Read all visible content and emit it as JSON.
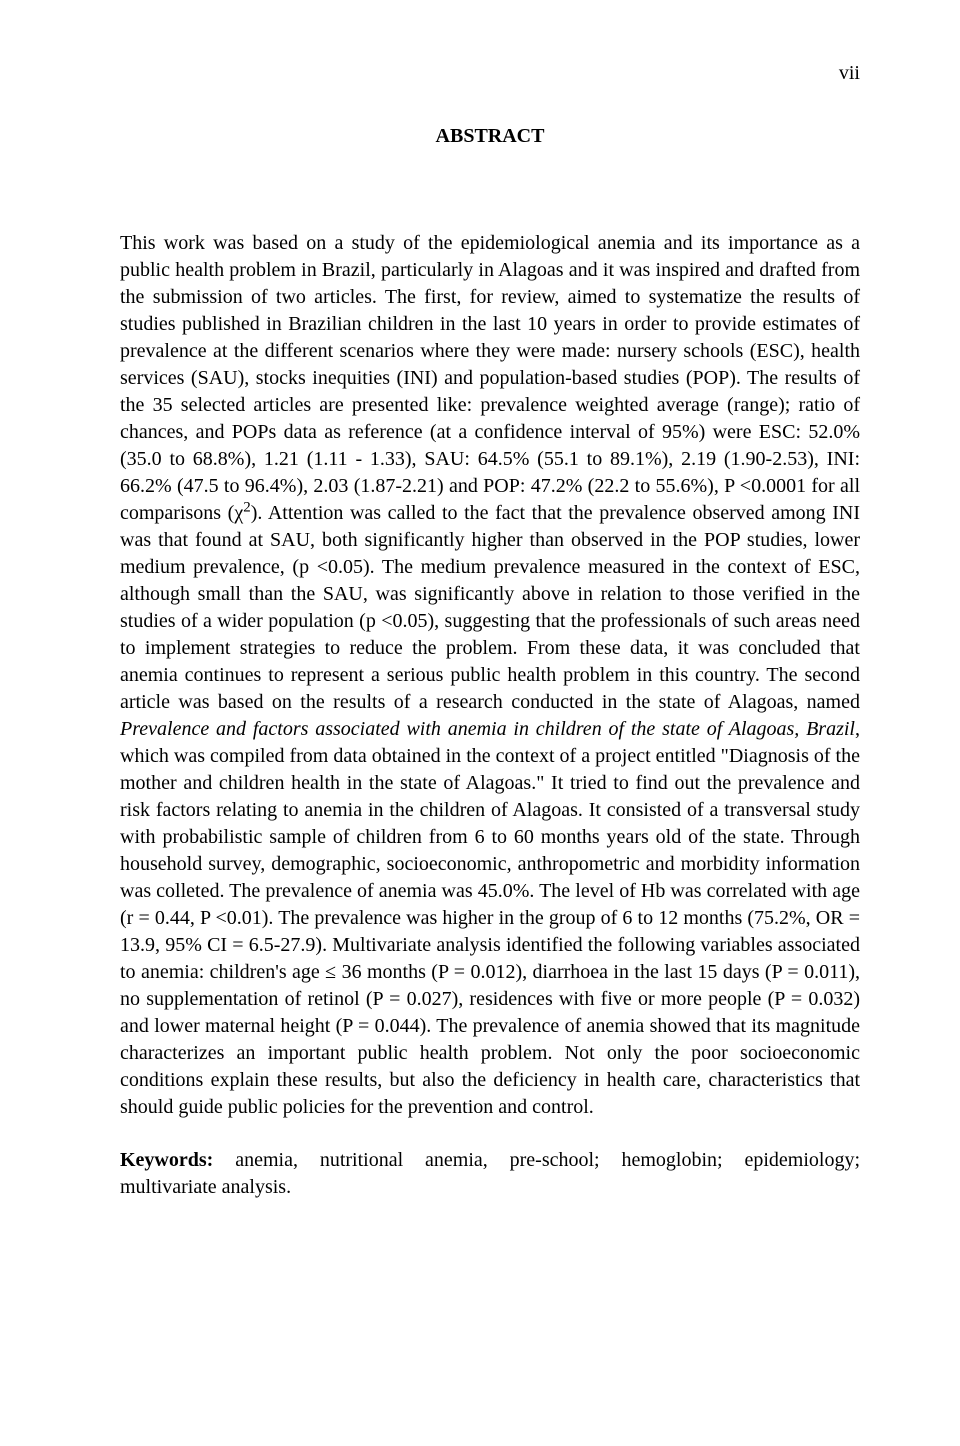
{
  "page": {
    "number_roman": "vii",
    "title": "ABSTRACT",
    "font_family": "Times New Roman",
    "font_size_pt": 12,
    "text_color": "#000000",
    "background_color": "#ffffff"
  },
  "abstract": {
    "p1_a": "This work was based on a study of the epidemiological anemia and its importance as a public health problem in Brazil, particularly in Alagoas and it was inspired and drafted from the submission of two articles. The first, for review, aimed to systematize the results of studies published in Brazilian children in the last 10 years in order to provide estimates of prevalence at the different scenarios where they were made: nursery schools (ESC), health services (SAU), stocks inequities (INI) and population-based studies (POP). The results of the 35 selected articles are presented like: prevalence weighted average (range); ratio of chances, and POPs data as reference (at a confidence interval of 95%) were ESC: 52.0% (35.0 to 68.8%), 1.21 (1.11 - 1.33), SAU: 64.5% (55.1 to 89.1%), 2.19 (1.90-2.53), INI: 66.2% (47.5 to 96.4%), 2.03 (1.87-2.21) and POP: 47.2% (22.2 to 55.6%), P <0.0001 for all comparisons (χ",
    "chi_sup": "2",
    "p1_b": "). Attention was called to the fact that the prevalence observed among INI was that found at SAU, both significantly higher than observed in the POP studies, lower medium prevalence, (p <0.05). The medium prevalence measured in the context of ESC, although small than the SAU, was significantly above in relation to those verified in the studies of a wider population (p <0.05), suggesting that the professionals of such areas need to implement strategies to reduce the problem. From these data, it was concluded that anemia continues to represent a serious public health problem in this country. The second article was based on the results of a research conducted in the state of Alagoas, named ",
    "p1_italic": "Prevalence and factors associated with anemia in children of the state of Alagoas, Brazil",
    "p1_c": ", which was compiled from data obtained in the context of a project entitled \"Diagnosis of the mother and children health in the state of Alagoas.\" It tried to find out the prevalence and risk factors relating to anemia in the children of Alagoas. It consisted of a transversal study with probabilistic sample of children from 6 to 60 months years old of the state. Through household survey, demographic, socioeconomic, anthropometric and morbidity information was colleted. The prevalence of anemia was 45.0%. The level of Hb was correlated with age (r = 0.44, P <0.01). The prevalence was higher in the group of 6 to 12 months (75.2%, OR = 13.9, 95% CI = 6.5-27.9). Multivariate analysis identified the following variables associated to anemia: children's age ≤ 36 months (P = 0.012), diarrhoea in the last 15 days (P = 0.011), no supplementation of retinol (P = 0.027), residences with five or more people (P = 0.032) and lower maternal height (P = 0.044). The prevalence of anemia showed that its magnitude characterizes an important public health problem. Not only the poor socioeconomic conditions explain these results, but also the deficiency in health care, characteristics that should guide public policies for the prevention and control."
  },
  "keywords": {
    "label": "Keywords:",
    "text": " anemia, nutritional anemia, pre-school; hemoglobin; epidemiology; multivariate analysis."
  }
}
